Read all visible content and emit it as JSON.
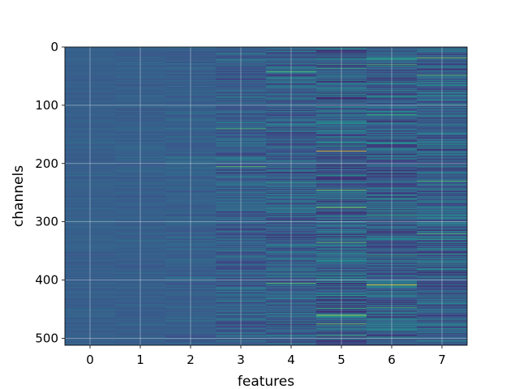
{
  "chart_data": {
    "type": "heatmap",
    "title": "",
    "xlabel": "features",
    "ylabel": "channels",
    "x_categories": [
      "0",
      "1",
      "2",
      "3",
      "4",
      "5",
      "6",
      "7"
    ],
    "y_ticks": [
      0,
      100,
      200,
      300,
      400,
      500
    ],
    "y_range": [
      0,
      512
    ],
    "rows": 512,
    "grid": true,
    "colormap": "viridis",
    "colors": {
      "low": "#3b2a73",
      "mid": "#2a7a8c",
      "high": "#d9f03a"
    },
    "column_variability": [
      0.12,
      0.14,
      0.22,
      0.45,
      0.55,
      0.72,
      0.7,
      0.65
    ],
    "bright_stripes": [
      {
        "feature": 5,
        "channel": 178,
        "intensity": 1.0
      },
      {
        "feature": 5,
        "channel": 245,
        "intensity": 0.8
      },
      {
        "feature": 5,
        "channel": 275,
        "intensity": 0.85
      },
      {
        "feature": 5,
        "channel": 335,
        "intensity": 0.75
      },
      {
        "feature": 5,
        "channel": 460,
        "intensity": 0.9
      },
      {
        "feature": 5,
        "channel": 475,
        "intensity": 0.8
      },
      {
        "feature": 6,
        "channel": 408,
        "intensity": 1.0
      },
      {
        "feature": 6,
        "channel": 30,
        "intensity": 0.7
      },
      {
        "feature": 7,
        "channel": 18,
        "intensity": 0.8
      },
      {
        "feature": 7,
        "channel": 48,
        "intensity": 0.75
      },
      {
        "feature": 7,
        "channel": 230,
        "intensity": 0.7
      },
      {
        "feature": 7,
        "channel": 320,
        "intensity": 0.7
      },
      {
        "feature": 4,
        "channel": 42,
        "intensity": 0.7
      },
      {
        "feature": 4,
        "channel": 405,
        "intensity": 0.75
      },
      {
        "feature": 3,
        "channel": 140,
        "intensity": 0.7
      },
      {
        "feature": 3,
        "channel": 205,
        "intensity": 0.75
      }
    ]
  }
}
